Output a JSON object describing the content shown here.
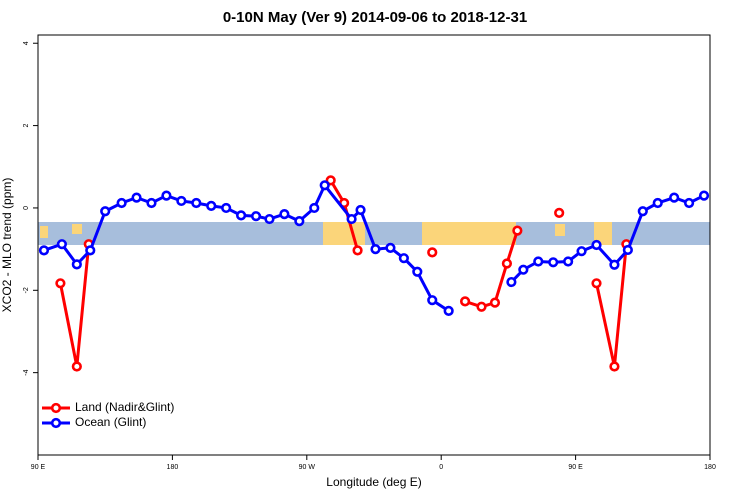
{
  "chart_data": {
    "type": "line",
    "title": "0-10N May (Ver 9)   2014-09-06 to 2018-12-31",
    "x_label": "Longitude (deg E)",
    "y_label": "XCO2 - MLO trend (ppm)",
    "xlim": [
      90,
      540
    ],
    "ylim": [
      -6,
      4.2
    ],
    "xticks": [
      {
        "value": 90,
        "label": "90 E"
      },
      180,
      {
        "value": 270,
        "label": "90 W"
      },
      {
        "value": 360,
        "label": "0"
      },
      {
        "value": 450,
        "label": "90 E"
      },
      {
        "value": 540,
        "label": "180"
      }
    ],
    "yticks": [
      4,
      2,
      0,
      -2,
      -4
    ],
    "legend": "bottomleft",
    "series": [
      {
        "name": "Land (Nadir&Glint)",
        "color": "#ff0000",
        "x": [
          105,
          116,
          124,
          200,
          286,
          295,
          304,
          330,
          354,
          365,
          376,
          387,
          396,
          404,
          411,
          425,
          439,
          450,
          464,
          476,
          484
        ],
        "values": [
          -1.83,
          -3.85,
          -0.88,
          null,
          0.67,
          0.12,
          -1.03,
          null,
          -1.08,
          null,
          -2.27,
          -2.4,
          -2.3,
          -1.35,
          -0.55,
          null,
          -0.12,
          null,
          -1.83,
          -3.85,
          -0.88
        ]
      },
      {
        "name": "Ocean (Glint)",
        "color": "#0000ff",
        "x": [
          94,
          106,
          116,
          125,
          135,
          146,
          156,
          166,
          176,
          186,
          196,
          206,
          216,
          226,
          236,
          245,
          255,
          265,
          275,
          282,
          300,
          306,
          316,
          326,
          335,
          344,
          354,
          365,
          385,
          407,
          415,
          425,
          435,
          445,
          454,
          464,
          476,
          485,
          495,
          505,
          516,
          526,
          536
        ],
        "values": [
          -1.03,
          -0.88,
          -1.37,
          -1.03,
          -0.08,
          0.12,
          0.25,
          0.12,
          0.3,
          0.17,
          0.12,
          0.05,
          0.0,
          -0.18,
          -0.2,
          -0.27,
          -0.15,
          -0.32,
          0.0,
          0.55,
          -0.27,
          -0.05,
          -1.0,
          -0.97,
          -1.22,
          -1.55,
          -2.24,
          -2.5,
          null,
          -1.8,
          -1.5,
          -1.3,
          -1.32,
          -1.3,
          -1.05,
          -0.9,
          -1.38,
          -1.02,
          -0.08,
          0.12,
          0.25,
          0.12,
          0.3
        ]
      }
    ]
  }
}
